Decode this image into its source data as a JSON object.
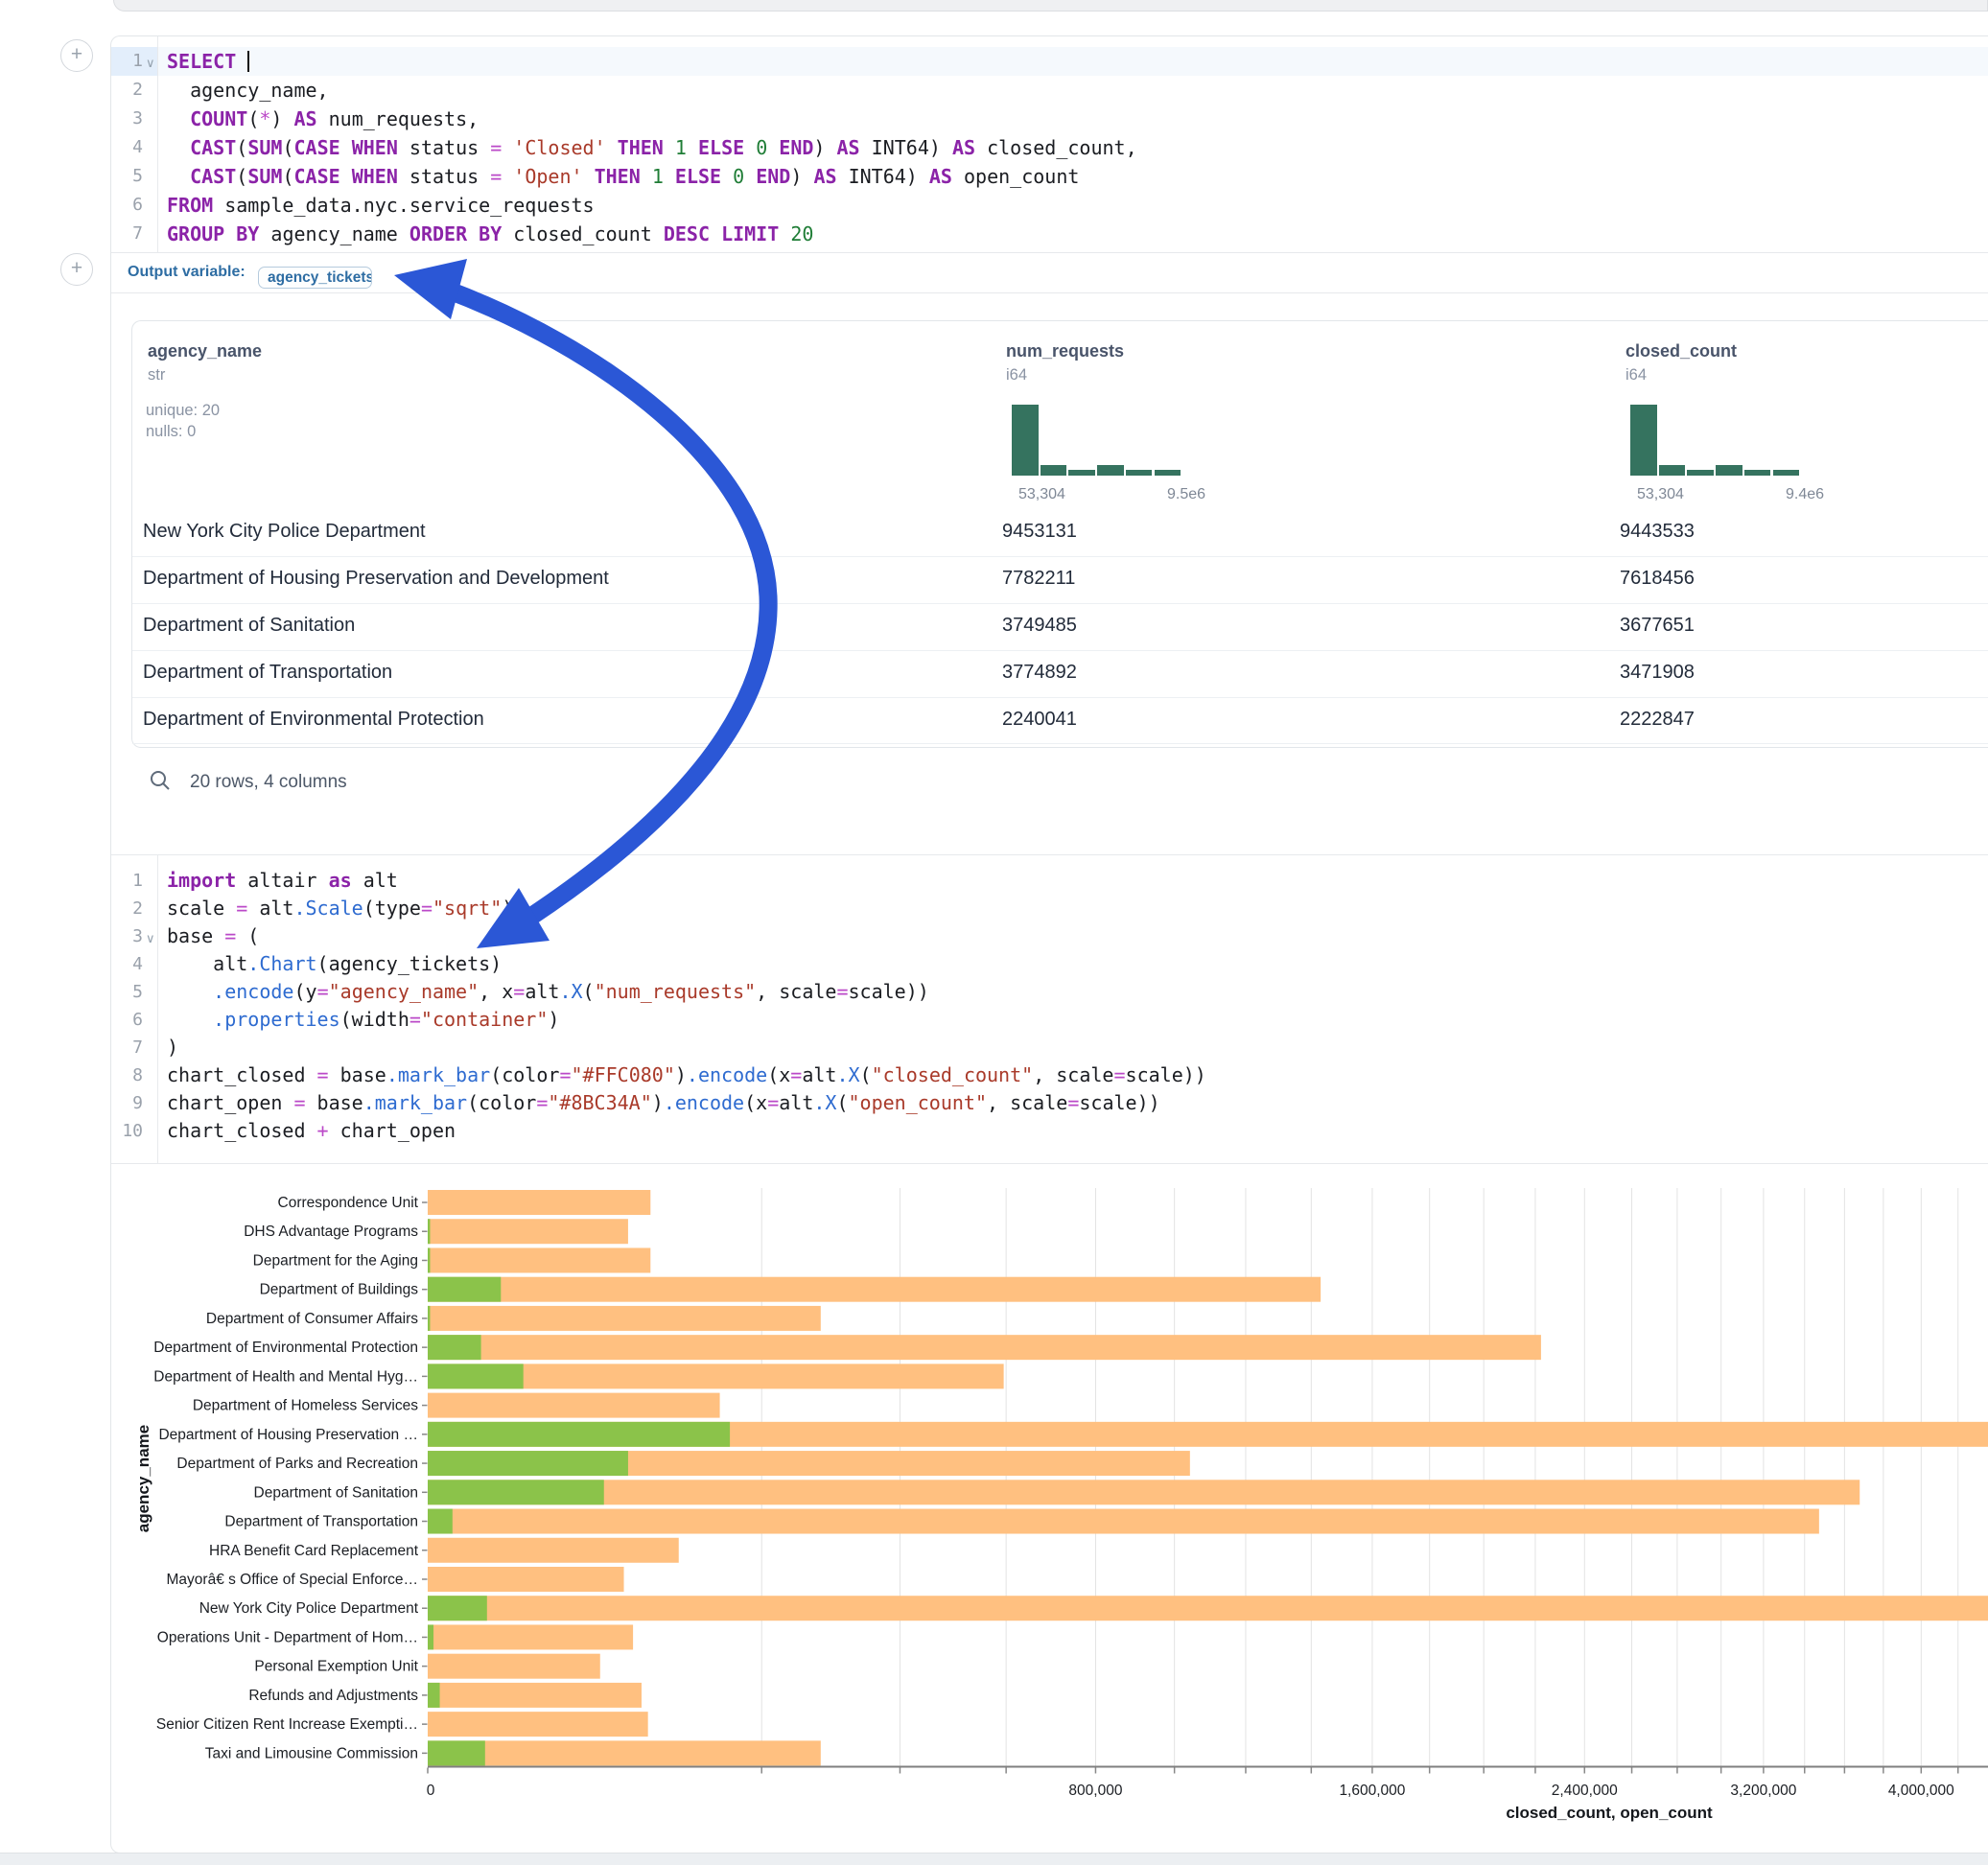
{
  "add_buttons": {
    "first": "+",
    "second": "+"
  },
  "sql_cell": {
    "lines": [
      {
        "n": "1",
        "fold": true,
        "active": true,
        "cursor": true,
        "tokens": [
          [
            "k",
            "SELECT"
          ],
          [
            "p",
            " "
          ]
        ]
      },
      {
        "n": "2",
        "tokens": [
          [
            "p",
            "  agency_name,"
          ]
        ]
      },
      {
        "n": "3",
        "tokens": [
          [
            "p",
            "  "
          ],
          [
            "k",
            "COUNT"
          ],
          [
            "p",
            "("
          ],
          [
            "o",
            "*"
          ],
          [
            "p",
            ") "
          ],
          [
            "k",
            "AS"
          ],
          [
            "p",
            " num_requests,"
          ]
        ]
      },
      {
        "n": "4",
        "tokens": [
          [
            "p",
            "  "
          ],
          [
            "k",
            "CAST"
          ],
          [
            "p",
            "("
          ],
          [
            "k",
            "SUM"
          ],
          [
            "p",
            "("
          ],
          [
            "k",
            "CASE"
          ],
          [
            "p",
            " "
          ],
          [
            "k",
            "WHEN"
          ],
          [
            "p",
            " status "
          ],
          [
            "o",
            "="
          ],
          [
            "p",
            " "
          ],
          [
            "s",
            "'Closed'"
          ],
          [
            "p",
            " "
          ],
          [
            "k",
            "THEN"
          ],
          [
            "p",
            " "
          ],
          [
            "n1",
            "1"
          ],
          [
            "p",
            " "
          ],
          [
            "k",
            "ELSE"
          ],
          [
            "p",
            " "
          ],
          [
            "n1",
            "0"
          ],
          [
            "p",
            " "
          ],
          [
            "k",
            "END"
          ],
          [
            "p",
            ") "
          ],
          [
            "k",
            "AS"
          ],
          [
            "p",
            " INT64) "
          ],
          [
            "k",
            "AS"
          ],
          [
            "p",
            " closed_count,"
          ]
        ]
      },
      {
        "n": "5",
        "tokens": [
          [
            "p",
            "  "
          ],
          [
            "k",
            "CAST"
          ],
          [
            "p",
            "("
          ],
          [
            "k",
            "SUM"
          ],
          [
            "p",
            "("
          ],
          [
            "k",
            "CASE"
          ],
          [
            "p",
            " "
          ],
          [
            "k",
            "WHEN"
          ],
          [
            "p",
            " status "
          ],
          [
            "o",
            "="
          ],
          [
            "p",
            " "
          ],
          [
            "s",
            "'Open'"
          ],
          [
            "p",
            " "
          ],
          [
            "k",
            "THEN"
          ],
          [
            "p",
            " "
          ],
          [
            "n1",
            "1"
          ],
          [
            "p",
            " "
          ],
          [
            "k",
            "ELSE"
          ],
          [
            "p",
            " "
          ],
          [
            "n1",
            "0"
          ],
          [
            "p",
            " "
          ],
          [
            "k",
            "END"
          ],
          [
            "p",
            ") "
          ],
          [
            "k",
            "AS"
          ],
          [
            "p",
            " INT64) "
          ],
          [
            "k",
            "AS"
          ],
          [
            "p",
            " open_count"
          ]
        ]
      },
      {
        "n": "6",
        "tokens": [
          [
            "k",
            "FROM"
          ],
          [
            "p",
            " sample_data.nyc.service_requests"
          ]
        ]
      },
      {
        "n": "7",
        "tokens": [
          [
            "k",
            "GROUP"
          ],
          [
            "p",
            " "
          ],
          [
            "k",
            "BY"
          ],
          [
            "p",
            " agency_name "
          ],
          [
            "k",
            "ORDER"
          ],
          [
            "p",
            " "
          ],
          [
            "k",
            "BY"
          ],
          [
            "p",
            " closed_count "
          ],
          [
            "k",
            "DESC"
          ],
          [
            "p",
            " "
          ],
          [
            "k",
            "LIMIT"
          ],
          [
            "p",
            " "
          ],
          [
            "n1",
            "20"
          ]
        ]
      }
    ]
  },
  "output_bar": {
    "label": "Output variable:",
    "variable": "agency_tickets"
  },
  "table": {
    "columns": [
      {
        "name": "agency_name",
        "type": "str",
        "stats": [
          "unique: 20",
          "nulls: 0"
        ]
      },
      {
        "name": "num_requests",
        "type": "i64",
        "hist_counts": [
          13,
          2,
          1,
          2,
          1,
          1
        ],
        "hist_min": "53,304",
        "hist_max": "9.5e6"
      },
      {
        "name": "closed_count",
        "type": "i64",
        "hist_counts": [
          13,
          2,
          1,
          2,
          1,
          1
        ],
        "hist_min": "53,304",
        "hist_max": "9.4e6"
      }
    ],
    "rows": [
      [
        "New York City Police Department",
        "9453131",
        "9443533"
      ],
      [
        "Department of Housing Preservation and Development",
        "7782211",
        "7618456"
      ],
      [
        "Department of Sanitation",
        "3749485",
        "3677651"
      ],
      [
        "Department of Transportation",
        "3774892",
        "3471908"
      ],
      [
        "Department of Environmental Protection",
        "2240041",
        "2222847"
      ]
    ],
    "footer": "20 rows, 4 columns"
  },
  "python_cell": {
    "lines": [
      {
        "n": "1",
        "tokens": [
          [
            "k",
            "import"
          ],
          [
            "p",
            " altair "
          ],
          [
            "k",
            "as"
          ],
          [
            "p",
            " alt"
          ]
        ]
      },
      {
        "n": "2",
        "tokens": [
          [
            "p",
            "scale "
          ],
          [
            "o",
            "="
          ],
          [
            "p",
            " alt"
          ],
          [
            "m",
            ".Scale"
          ],
          [
            "p",
            "(type"
          ],
          [
            "o",
            "="
          ],
          [
            "s",
            "\"sqrt\""
          ],
          [
            "p",
            ")"
          ]
        ]
      },
      {
        "n": "3",
        "fold": true,
        "tokens": [
          [
            "p",
            "base "
          ],
          [
            "o",
            "="
          ],
          [
            "p",
            " ("
          ]
        ]
      },
      {
        "n": "4",
        "tokens": [
          [
            "p",
            "    alt"
          ],
          [
            "m",
            ".Chart"
          ],
          [
            "p",
            "(agency_tickets)"
          ]
        ]
      },
      {
        "n": "5",
        "tokens": [
          [
            "p",
            "    "
          ],
          [
            "m",
            ".encode"
          ],
          [
            "p",
            "(y"
          ],
          [
            "o",
            "="
          ],
          [
            "s",
            "\"agency_name\""
          ],
          [
            "p",
            ", x"
          ],
          [
            "o",
            "="
          ],
          [
            "p",
            "alt"
          ],
          [
            "m",
            ".X"
          ],
          [
            "p",
            "("
          ],
          [
            "s",
            "\"num_requests\""
          ],
          [
            "p",
            ", scale"
          ],
          [
            "o",
            "="
          ],
          [
            "p",
            "scale))"
          ]
        ]
      },
      {
        "n": "6",
        "tokens": [
          [
            "p",
            "    "
          ],
          [
            "m",
            ".properties"
          ],
          [
            "p",
            "(width"
          ],
          [
            "o",
            "="
          ],
          [
            "s",
            "\"container\""
          ],
          [
            "p",
            ")"
          ]
        ]
      },
      {
        "n": "7",
        "tokens": [
          [
            "p",
            ")"
          ]
        ]
      },
      {
        "n": "8",
        "tokens": [
          [
            "p",
            "chart_closed "
          ],
          [
            "o",
            "="
          ],
          [
            "p",
            " base"
          ],
          [
            "m",
            ".mark_bar"
          ],
          [
            "p",
            "(color"
          ],
          [
            "o",
            "="
          ],
          [
            "s",
            "\"#FFC080\""
          ],
          [
            "p",
            ")"
          ],
          [
            "m",
            ".encode"
          ],
          [
            "p",
            "(x"
          ],
          [
            "o",
            "="
          ],
          [
            "p",
            "alt"
          ],
          [
            "m",
            ".X"
          ],
          [
            "p",
            "("
          ],
          [
            "s",
            "\"closed_count\""
          ],
          [
            "p",
            ", scale"
          ],
          [
            "o",
            "="
          ],
          [
            "p",
            "scale))"
          ]
        ]
      },
      {
        "n": "9",
        "tokens": [
          [
            "p",
            "chart_open "
          ],
          [
            "o",
            "="
          ],
          [
            "p",
            " base"
          ],
          [
            "m",
            ".mark_bar"
          ],
          [
            "p",
            "(color"
          ],
          [
            "o",
            "="
          ],
          [
            "s",
            "\"#8BC34A\""
          ],
          [
            "p",
            ")"
          ],
          [
            "m",
            ".encode"
          ],
          [
            "p",
            "(x"
          ],
          [
            "o",
            "="
          ],
          [
            "p",
            "alt"
          ],
          [
            "m",
            ".X"
          ],
          [
            "p",
            "("
          ],
          [
            "s",
            "\"open_count\""
          ],
          [
            "p",
            ", scale"
          ],
          [
            "o",
            "="
          ],
          [
            "p",
            "scale))"
          ]
        ]
      },
      {
        "n": "10",
        "tokens": [
          [
            "p",
            "chart_closed "
          ],
          [
            "o",
            "+"
          ],
          [
            "p",
            " chart_open"
          ]
        ]
      }
    ]
  },
  "chart_data": {
    "type": "bar",
    "orientation": "horizontal",
    "x_scale": "sqrt",
    "xlabel": "closed_count, open_count",
    "ylabel": "agency_name",
    "x_tick_values": [
      0,
      800000,
      1600000,
      2400000,
      3200000,
      4000000
    ],
    "x_tick_labels": [
      "0",
      "800,000",
      "1,600,000",
      "2,400,000",
      "3,200,000",
      "4,000,000"
    ],
    "grid_step": 200000,
    "colors": {
      "closed_count": "#FFC080",
      "open_count": "#8BC34A"
    },
    "agencies": [
      {
        "label": "Correspondence Unit",
        "closed": 89000,
        "open": 0
      },
      {
        "label": "DHS Advantage Programs",
        "closed": 72000,
        "open": 10
      },
      {
        "label": "Department for the Aging",
        "closed": 89000,
        "open": 10
      },
      {
        "label": "Department of Buildings",
        "closed": 1430000,
        "open": 9600
      },
      {
        "label": "Department of Consumer Affairs",
        "closed": 277000,
        "open": 10
      },
      {
        "label": "Department of Environmental Protection",
        "closed": 2222847,
        "open": 5100
      },
      {
        "label": "Department of Health and Mental Hyg…",
        "closed": 595000,
        "open": 16400
      },
      {
        "label": "Department of Homeless Services",
        "closed": 153000,
        "open": 0
      },
      {
        "label": "Department of Housing Preservation …",
        "closed": 7618456,
        "open": 163755
      },
      {
        "label": "Department of Parks and Recreation",
        "closed": 1042000,
        "open": 72000
      },
      {
        "label": "Department of Sanitation",
        "closed": 3677651,
        "open": 55700
      },
      {
        "label": "Department of Transportation",
        "closed": 3471908,
        "open": 1100
      },
      {
        "label": "HRA Benefit Card Replacement",
        "closed": 113000,
        "open": 0
      },
      {
        "label": "Mayorâ€ s Office of Special Enforce…",
        "closed": 69000,
        "open": 0
      },
      {
        "label": "New York City Police Department",
        "closed": 9443533,
        "open": 6300
      },
      {
        "label": "Operations Unit - Department of Hom…",
        "closed": 75600,
        "open": 60
      },
      {
        "label": "Personal Exemption Unit",
        "closed": 53304,
        "open": 0
      },
      {
        "label": "Refunds and Adjustments",
        "closed": 82000,
        "open": 260
      },
      {
        "label": "Senior Citizen Rent Increase Exempti…",
        "closed": 87000,
        "open": 0
      },
      {
        "label": "Taxi and Limousine Commission",
        "closed": 277000,
        "open": 5900
      }
    ]
  },
  "annotation": {
    "arrow_color": "#2b57d6"
  }
}
